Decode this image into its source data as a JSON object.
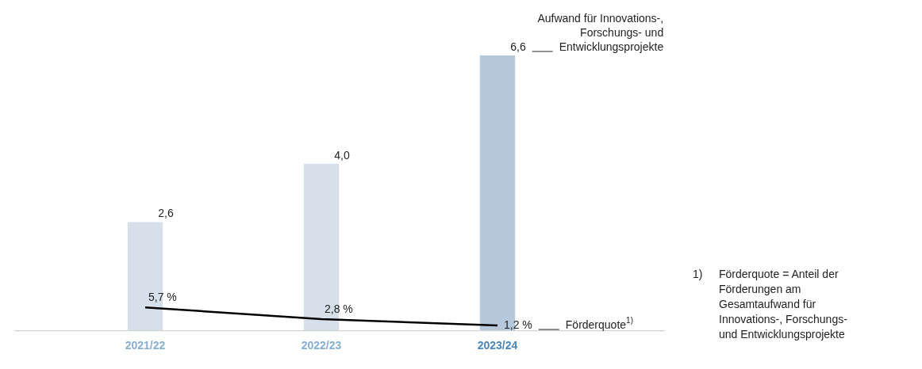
{
  "chart_data": {
    "type": "bar",
    "categories": [
      "2021/22",
      "2022/23",
      "2023/24"
    ],
    "series": [
      {
        "name": "Aufwand für Innovations-, Forschungs- und Entwicklungsprojekte",
        "colors": [
          "#d5e0ea",
          "#d5e0ea",
          "#b5c8dc"
        ],
        "values": [
          2.6,
          4.0,
          6.6
        ],
        "value_labels": [
          "2,6",
          "4,0",
          "6,6"
        ]
      },
      {
        "name": "Förderquote$^{1)}$",
        "type": "line",
        "axis": "y2",
        "color": "#000000",
        "values": [
          5.7,
          2.8,
          1.2
        ],
        "value_labels": [
          "5,7 %",
          "2,8 %",
          "1,2 %"
        ]
      }
    ],
    "tick_labels": "x",
    "grid": false,
    "legend": false,
    "marker": "none",
    "annotations": [
      "1) Förderquote = Anteil der Förderungen am Gesamtaufwand für Innovations-, Forschungs- und Entwicklungsprojekte"
    ]
  }
}
